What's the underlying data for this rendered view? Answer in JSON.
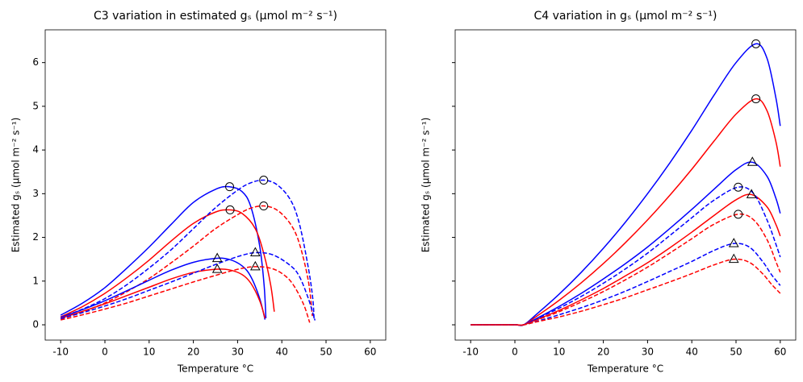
{
  "chart_data": [
    {
      "type": "line",
      "title": "C3 variation in estimated gₛ   (μmol m⁻² s⁻¹)",
      "xlabel": "Temperature °C",
      "ylabel": "Estimated gₛ   (μmol m⁻² s⁻¹)",
      "xlim": [
        -13.5,
        63.5
      ],
      "ylim": [
        -0.35,
        6.75
      ],
      "xticks": [
        -10,
        0,
        10,
        20,
        30,
        40,
        50,
        60
      ],
      "yticks": [
        0,
        1,
        2,
        3,
        4,
        5,
        6
      ],
      "ytick_labels": true,
      "series": [
        {
          "color": "#0000ff",
          "dash": false,
          "x": [
            -10,
            -5,
            0,
            5,
            10,
            15,
            20,
            25,
            28,
            31,
            33,
            35,
            36,
            36.4
          ],
          "values": [
            0.22,
            0.5,
            0.85,
            1.3,
            1.78,
            2.3,
            2.8,
            3.1,
            3.16,
            3.05,
            2.7,
            1.8,
            0.9,
            0.15
          ],
          "marker": {
            "shape": "circle",
            "x": 28.2,
            "y": 3.16
          }
        },
        {
          "color": "#ff0000",
          "dash": false,
          "x": [
            -10,
            -5,
            0,
            5,
            10,
            15,
            20,
            25,
            28,
            31,
            34,
            36,
            37.5,
            38.3
          ],
          "values": [
            0.18,
            0.42,
            0.72,
            1.08,
            1.48,
            1.92,
            2.32,
            2.58,
            2.63,
            2.55,
            2.2,
            1.6,
            0.9,
            0.3
          ],
          "marker": {
            "shape": "circle",
            "x": 28.3,
            "y": 2.63
          }
        },
        {
          "color": "#0000ff",
          "dash": true,
          "x": [
            -10,
            -5,
            0,
            5,
            10,
            15,
            20,
            25,
            30,
            33,
            36,
            39,
            42,
            44,
            46,
            47,
            47.3
          ],
          "values": [
            0.17,
            0.36,
            0.6,
            0.92,
            1.3,
            1.72,
            2.2,
            2.68,
            3.08,
            3.25,
            3.31,
            3.2,
            2.85,
            2.3,
            1.3,
            0.6,
            0.1
          ],
          "marker": {
            "shape": "circle",
            "x": 35.9,
            "y": 3.31
          }
        },
        {
          "color": "#ff0000",
          "dash": true,
          "x": [
            -10,
            -5,
            0,
            5,
            10,
            15,
            20,
            25,
            30,
            33,
            36,
            39,
            42,
            44,
            46,
            46.9
          ],
          "values": [
            0.13,
            0.3,
            0.5,
            0.76,
            1.06,
            1.42,
            1.8,
            2.2,
            2.52,
            2.67,
            2.72,
            2.62,
            2.3,
            1.85,
            1.0,
            0.2
          ],
          "marker": {
            "shape": "circle",
            "x": 35.9,
            "y": 2.72
          }
        },
        {
          "color": "#0000ff",
          "dash": false,
          "x": [
            -10,
            -5,
            0,
            5,
            10,
            15,
            20,
            25,
            28,
            31,
            33,
            35,
            36.2
          ],
          "values": [
            0.17,
            0.35,
            0.55,
            0.78,
            1.02,
            1.25,
            1.43,
            1.52,
            1.5,
            1.35,
            1.1,
            0.6,
            0.12
          ],
          "marker": {
            "shape": "triangle",
            "x": 25.4,
            "y": 1.52
          }
        },
        {
          "color": "#ff0000",
          "dash": false,
          "x": [
            -10,
            -5,
            0,
            5,
            10,
            15,
            20,
            25,
            28,
            31,
            33,
            35,
            36.2
          ],
          "values": [
            0.15,
            0.31,
            0.48,
            0.67,
            0.86,
            1.05,
            1.2,
            1.27,
            1.26,
            1.15,
            0.95,
            0.55,
            0.15
          ],
          "marker": {
            "shape": "triangle",
            "x": 25.4,
            "y": 1.27
          }
        },
        {
          "color": "#0000ff",
          "dash": true,
          "x": [
            -10,
            -5,
            0,
            5,
            10,
            15,
            20,
            25,
            30,
            34,
            38,
            42,
            44,
            46,
            47.5
          ],
          "values": [
            0.14,
            0.28,
            0.43,
            0.6,
            0.79,
            0.98,
            1.18,
            1.38,
            1.56,
            1.65,
            1.6,
            1.35,
            1.1,
            0.6,
            0.1
          ],
          "marker": {
            "shape": "triangle",
            "x": 34,
            "y": 1.65
          }
        },
        {
          "color": "#ff0000",
          "dash": true,
          "x": [
            -10,
            -5,
            0,
            5,
            10,
            15,
            20,
            25,
            30,
            34,
            38,
            41,
            43,
            45,
            46.3
          ],
          "values": [
            0.11,
            0.23,
            0.36,
            0.5,
            0.66,
            0.82,
            0.98,
            1.13,
            1.27,
            1.33,
            1.28,
            1.1,
            0.85,
            0.45,
            0.05
          ],
          "marker": {
            "shape": "triangle",
            "x": 34,
            "y": 1.33
          }
        }
      ]
    },
    {
      "type": "line",
      "title": "C4 variation in gₛ   (μmol m⁻² s⁻¹)",
      "xlabel": "Temperature °C",
      "ylabel": "Estimated gₛ   (μmol m⁻² s⁻¹)",
      "xlim": [
        -13.5,
        63.5
      ],
      "ylim": [
        -0.35,
        6.75
      ],
      "xticks": [
        -10,
        0,
        10,
        20,
        30,
        40,
        50,
        60
      ],
      "yticks": [
        0,
        1,
        2,
        3,
        4,
        5,
        6
      ],
      "ytick_labels": false,
      "series": [
        {
          "color": "#0000ff",
          "dash": false,
          "x": [
            -10,
            -5,
            0,
            2,
            5,
            10,
            15,
            20,
            25,
            30,
            35,
            40,
            45,
            50,
            54.5,
            57,
            59,
            60
          ],
          "values": [
            0,
            0,
            0,
            0,
            0.25,
            0.7,
            1.2,
            1.75,
            2.35,
            3.0,
            3.7,
            4.45,
            5.25,
            6.0,
            6.43,
            6.1,
            5.2,
            4.55
          ],
          "marker": {
            "shape": "circle",
            "x": 54.5,
            "y": 6.43
          }
        },
        {
          "color": "#ff0000",
          "dash": false,
          "x": [
            -10,
            -5,
            0,
            2,
            5,
            10,
            15,
            20,
            25,
            30,
            35,
            40,
            45,
            50,
            54.5,
            57,
            59,
            60
          ],
          "values": [
            0,
            0,
            0,
            0,
            0.2,
            0.56,
            0.96,
            1.4,
            1.88,
            2.4,
            2.96,
            3.56,
            4.2,
            4.82,
            5.17,
            4.9,
            4.2,
            3.62
          ],
          "marker": {
            "shape": "circle",
            "x": 54.5,
            "y": 5.17
          }
        },
        {
          "color": "#0000ff",
          "dash": false,
          "x": [
            -10,
            -5,
            0,
            2,
            5,
            10,
            15,
            20,
            25,
            30,
            35,
            40,
            45,
            50,
            53.7,
            57,
            59,
            60
          ],
          "values": [
            0,
            0,
            0,
            0,
            0.15,
            0.42,
            0.72,
            1.05,
            1.4,
            1.78,
            2.2,
            2.64,
            3.1,
            3.55,
            3.72,
            3.4,
            2.9,
            2.55
          ],
          "marker": {
            "shape": "triangle",
            "x": 53.7,
            "y": 3.72
          }
        },
        {
          "color": "#ff0000",
          "dash": false,
          "x": [
            -10,
            -5,
            0,
            2,
            5,
            10,
            15,
            20,
            25,
            30,
            35,
            40,
            45,
            50,
            53.5,
            57,
            59,
            60
          ],
          "values": [
            0,
            0,
            0,
            0,
            0.12,
            0.33,
            0.57,
            0.83,
            1.12,
            1.42,
            1.76,
            2.12,
            2.5,
            2.86,
            2.98,
            2.7,
            2.3,
            2.03
          ],
          "marker": {
            "shape": "triangle",
            "x": 53.5,
            "y": 2.98
          }
        },
        {
          "color": "#0000ff",
          "dash": true,
          "x": [
            -10,
            -5,
            0,
            2,
            5,
            10,
            15,
            20,
            25,
            30,
            35,
            40,
            45,
            50.5,
            54,
            57,
            59,
            60
          ],
          "values": [
            0,
            0,
            0,
            0,
            0.14,
            0.38,
            0.65,
            0.95,
            1.28,
            1.64,
            2.04,
            2.45,
            2.85,
            3.15,
            3.0,
            2.4,
            1.85,
            1.55
          ],
          "marker": {
            "shape": "circle",
            "x": 50.5,
            "y": 3.15
          }
        },
        {
          "color": "#ff0000",
          "dash": true,
          "x": [
            -10,
            -5,
            0,
            2,
            5,
            10,
            15,
            20,
            25,
            30,
            35,
            40,
            45,
            50.5,
            54,
            57,
            59,
            60
          ],
          "values": [
            0,
            0,
            0,
            0,
            0.11,
            0.3,
            0.52,
            0.76,
            1.03,
            1.32,
            1.64,
            1.97,
            2.3,
            2.53,
            2.4,
            1.95,
            1.45,
            1.2
          ],
          "marker": {
            "shape": "circle",
            "x": 50.5,
            "y": 2.53
          }
        },
        {
          "color": "#0000ff",
          "dash": true,
          "x": [
            -10,
            -5,
            0,
            2,
            5,
            10,
            15,
            20,
            25,
            30,
            35,
            40,
            45,
            49.5,
            53,
            56,
            58,
            60
          ],
          "values": [
            0,
            0,
            0,
            0,
            0.08,
            0.23,
            0.39,
            0.57,
            0.77,
            0.99,
            1.22,
            1.45,
            1.7,
            1.86,
            1.78,
            1.45,
            1.15,
            0.9
          ],
          "marker": {
            "shape": "triangle",
            "x": 49.5,
            "y": 1.86
          }
        },
        {
          "color": "#ff0000",
          "dash": true,
          "x": [
            -10,
            -5,
            0,
            2,
            5,
            10,
            15,
            20,
            25,
            30,
            35,
            40,
            45,
            49.5,
            53,
            56,
            58,
            60
          ],
          "values": [
            0,
            0,
            0,
            0,
            0.07,
            0.18,
            0.31,
            0.46,
            0.62,
            0.8,
            0.98,
            1.17,
            1.37,
            1.5,
            1.43,
            1.17,
            0.93,
            0.72
          ],
          "marker": {
            "shape": "triangle",
            "x": 49.5,
            "y": 1.5
          }
        }
      ]
    }
  ]
}
